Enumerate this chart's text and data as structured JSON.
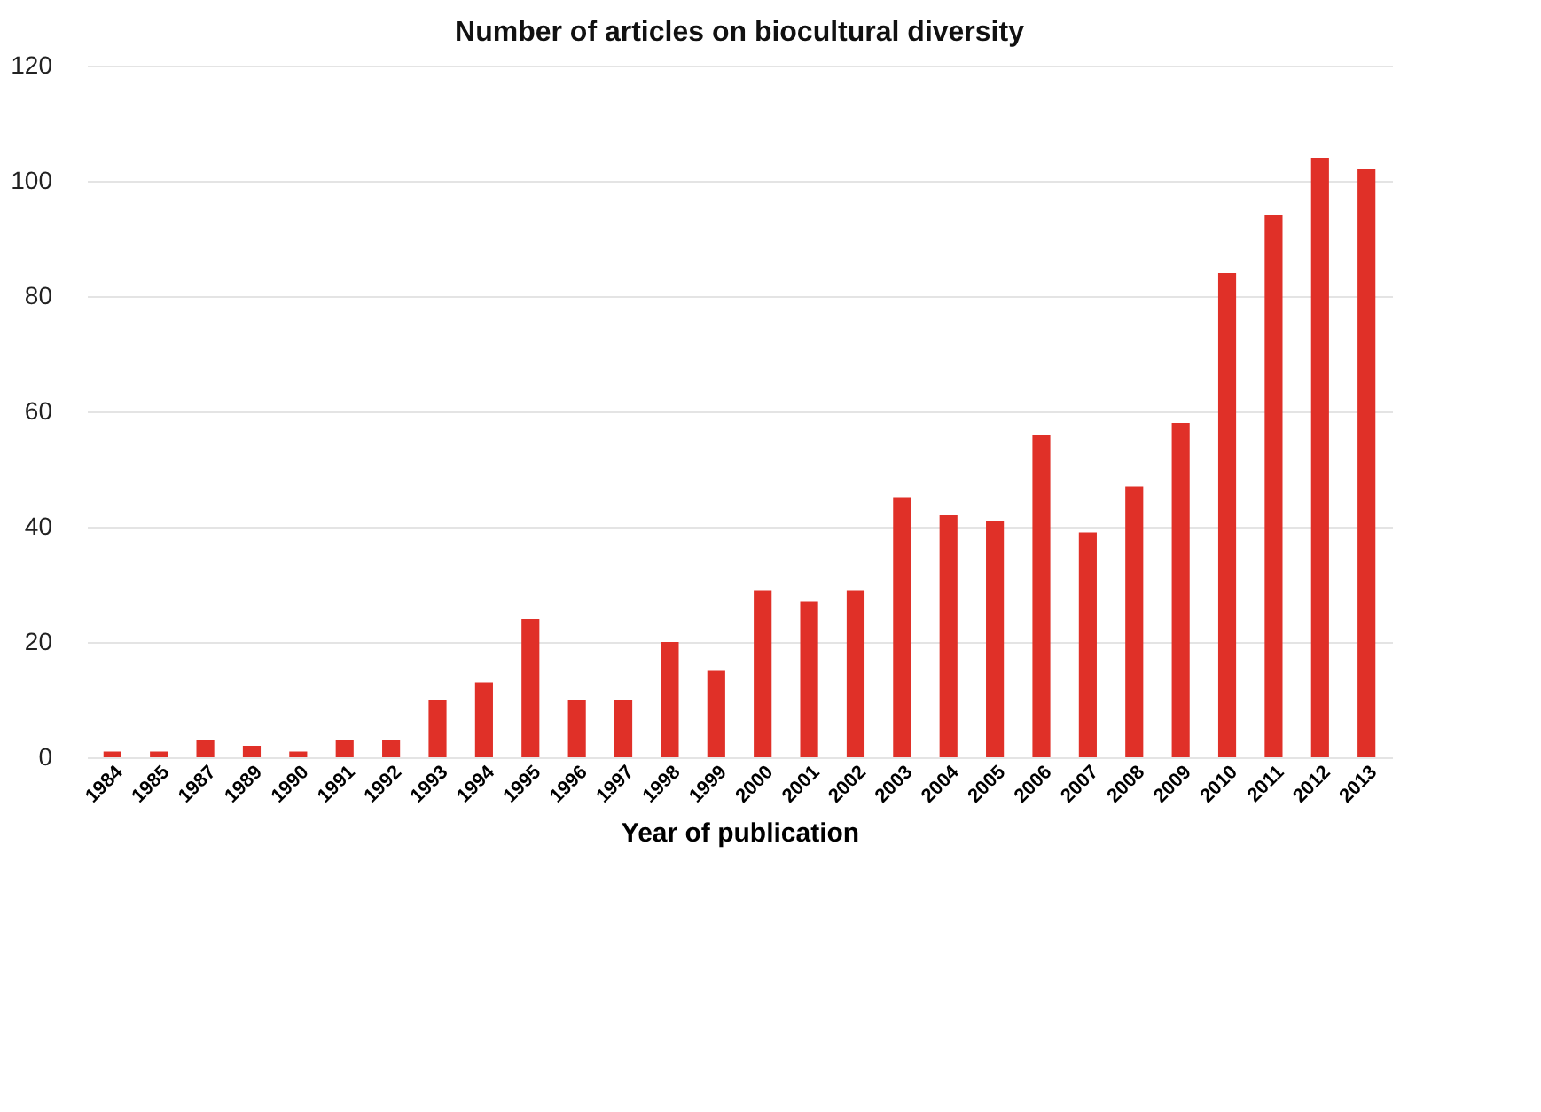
{
  "chart_data": {
    "type": "bar",
    "title": "Number of articles on  biocultural diversity",
    "xlabel": "Year of publication",
    "categories": [
      "1984",
      "1985",
      "1987",
      "1989",
      "1990",
      "1991",
      "1992",
      "1993",
      "1994",
      "1995",
      "1996",
      "1997",
      "1998",
      "1999",
      "2000",
      "2001",
      "2002",
      "2003",
      "2004",
      "2005",
      "2006",
      "2007",
      "2008",
      "2009",
      "2010",
      "2011",
      "2012",
      "2013"
    ],
    "values": [
      1,
      1,
      3,
      2,
      1,
      3,
      3,
      10,
      13,
      24,
      10,
      10,
      20,
      15,
      29,
      27,
      29,
      45,
      42,
      41,
      56,
      39,
      47,
      58,
      84,
      94,
      104,
      102
    ],
    "color": "#e03028",
    "ylim": [
      0,
      120
    ],
    "yticks": [
      0,
      20,
      40,
      60,
      80,
      100,
      120
    ],
    "grid": "y"
  }
}
